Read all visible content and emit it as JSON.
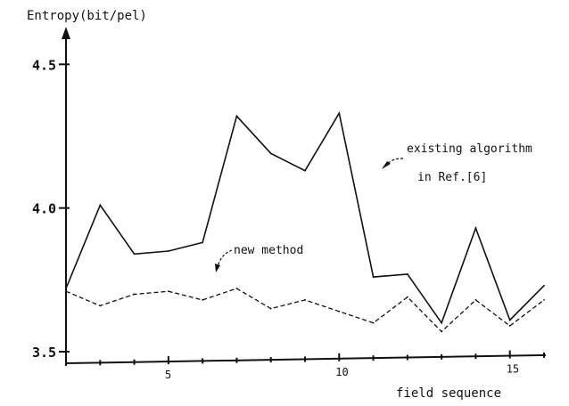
{
  "chart_data": {
    "type": "line",
    "title": "",
    "ylabel": "Entropy(bit/pel)",
    "xlabel": "field sequence",
    "xlim": [
      2,
      16
    ],
    "ylim": [
      3.5,
      4.6
    ],
    "x_ticks": [
      5,
      10,
      15
    ],
    "y_ticks": [
      3.5,
      4.0,
      4.5
    ],
    "y_tick_labels": [
      "3.5",
      "4.0",
      "4.5"
    ],
    "x_tick_labels": [
      "5",
      "10",
      "15"
    ],
    "grid": false,
    "series": [
      {
        "name": "existing algorithm in Ref.[6]",
        "style": "solid",
        "color": "#111111",
        "x": [
          2,
          3,
          4,
          5,
          6,
          7,
          8,
          9,
          10,
          11,
          12,
          13,
          14,
          15,
          16
        ],
        "values": [
          3.72,
          4.01,
          3.84,
          3.85,
          3.88,
          4.32,
          4.19,
          4.13,
          4.33,
          3.76,
          3.77,
          3.6,
          3.93,
          3.61,
          3.73
        ]
      },
      {
        "name": "new method",
        "style": "dashed",
        "color": "#111111",
        "x": [
          2,
          3,
          4,
          5,
          6,
          7,
          8,
          9,
          10,
          11,
          12,
          13,
          14,
          15,
          16
        ],
        "values": [
          3.71,
          3.66,
          3.7,
          3.71,
          3.68,
          3.72,
          3.65,
          3.68,
          3.64,
          3.6,
          3.69,
          3.57,
          3.68,
          3.59,
          3.68
        ]
      }
    ],
    "annotations": [
      {
        "lines": [
          "existing algorithm",
          "in Ref.[6]"
        ],
        "series": 0
      },
      {
        "lines": [
          "new method"
        ],
        "series": 1
      }
    ]
  }
}
